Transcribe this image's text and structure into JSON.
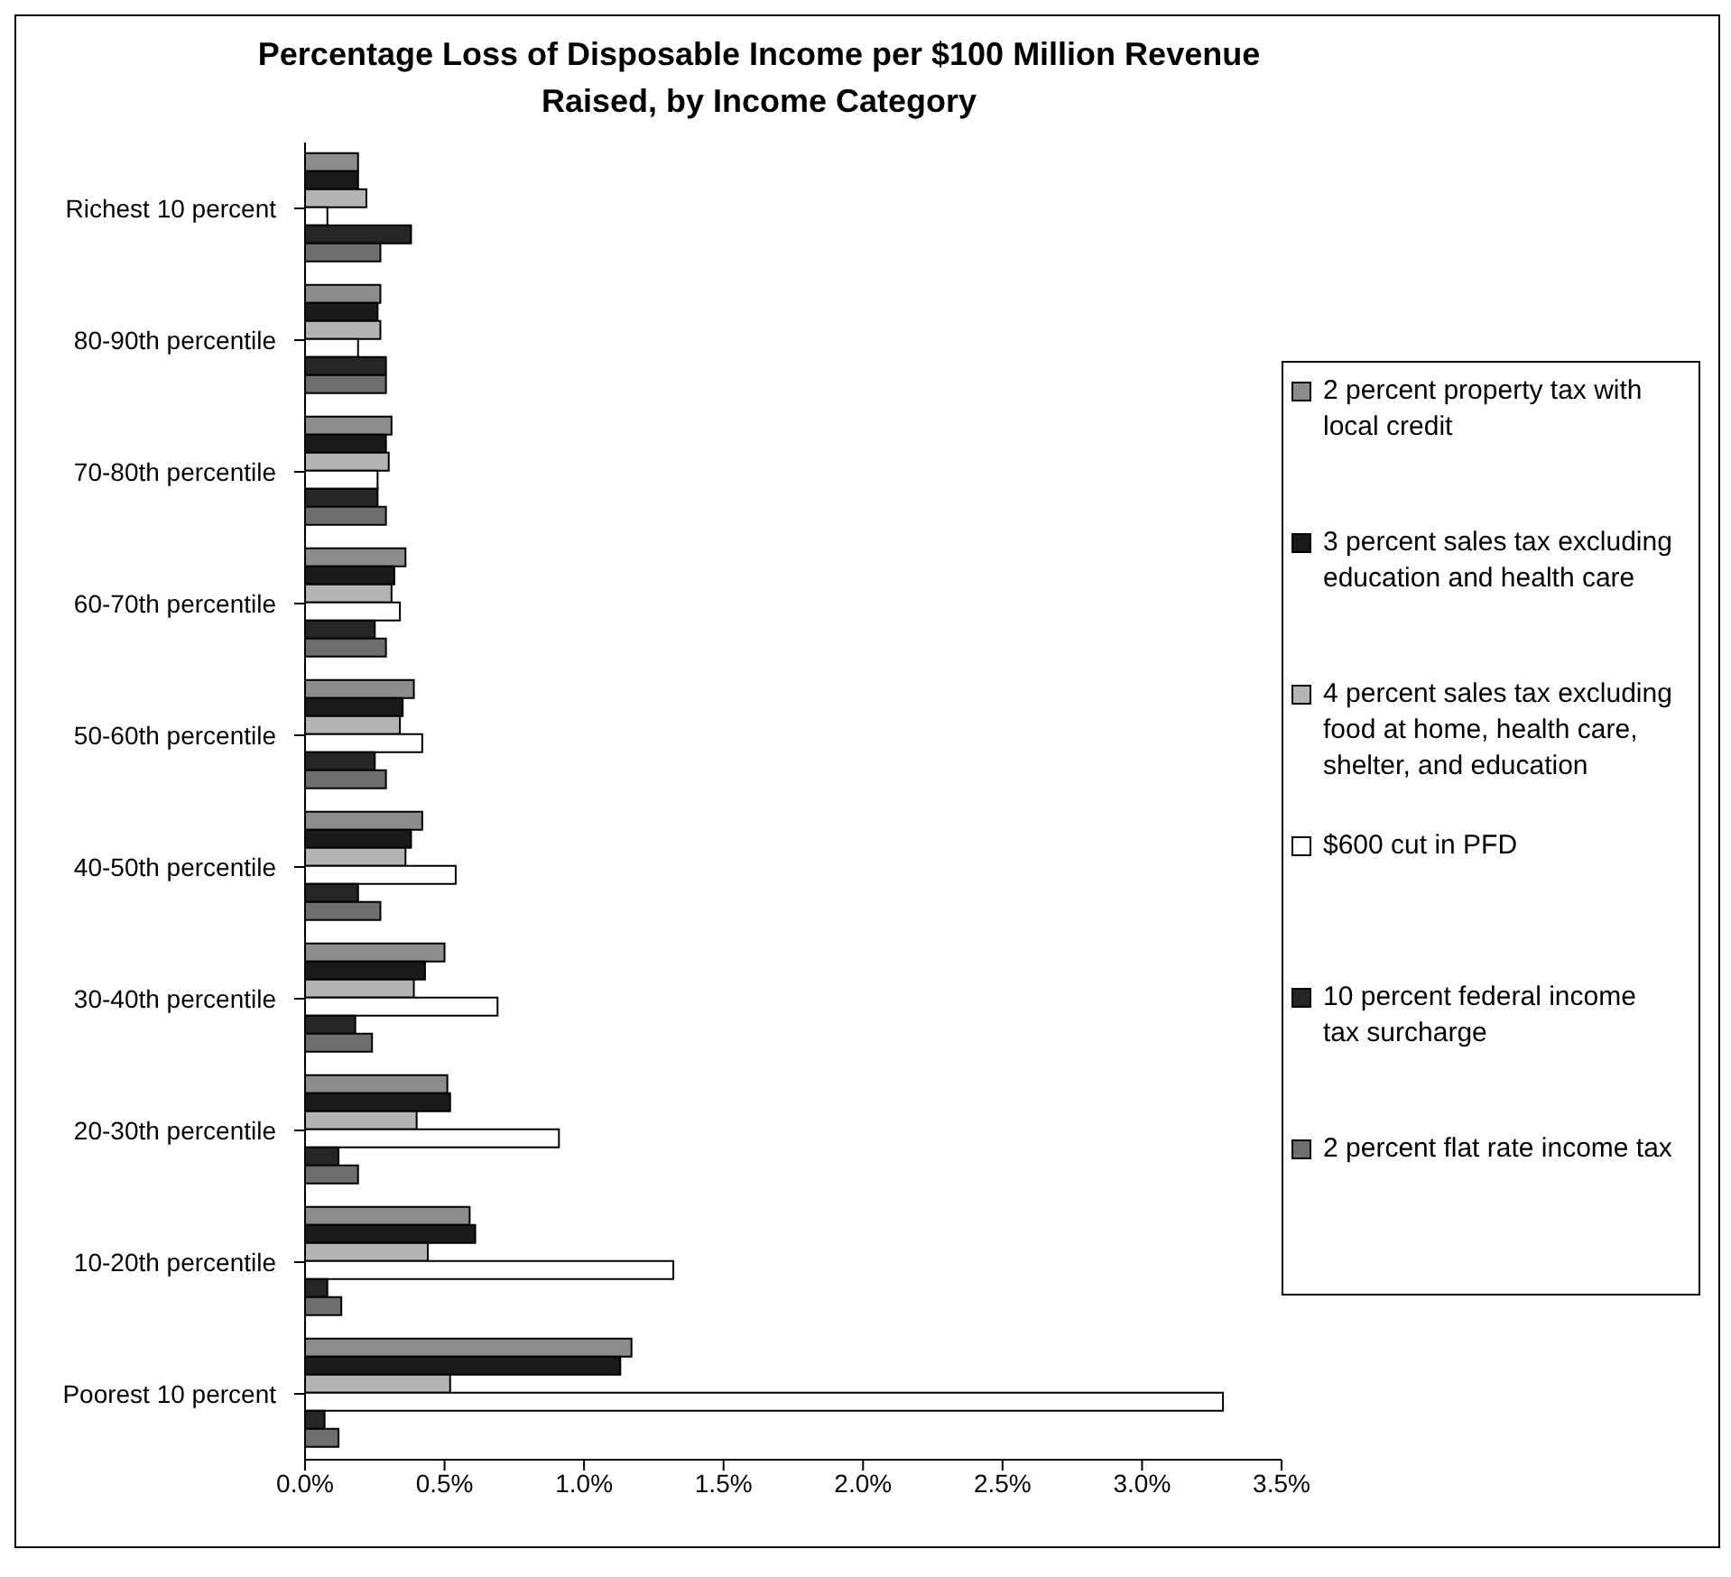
{
  "chart_data": {
    "type": "bar",
    "orientation": "horizontal",
    "title": "Percentage Loss of Disposable Income per $100 Million Revenue Raised, by Income Category",
    "categories": [
      "Richest 10 percent",
      "80-90th percentile",
      "70-80th percentile",
      "60-70th percentile",
      "50-60th percentile",
      "40-50th percentile",
      "30-40th percentile",
      "20-30th percentile",
      "10-20th percentile",
      "Poorest 10 percent"
    ],
    "series": [
      {
        "name": "2 percent property tax with local credit",
        "color": "#8c8c8c",
        "values": [
          0.19,
          0.27,
          0.31,
          0.36,
          0.39,
          0.42,
          0.5,
          0.51,
          0.59,
          1.17
        ]
      },
      {
        "name": "3 percent sales tax excluding education and health care",
        "color": "#1a1a1a",
        "values": [
          0.19,
          0.26,
          0.29,
          0.32,
          0.35,
          0.38,
          0.43,
          0.52,
          0.61,
          1.13
        ]
      },
      {
        "name": "4 percent sales tax excluding food at home, health care, shelter, and education",
        "color": "#b4b4b4",
        "values": [
          0.22,
          0.27,
          0.3,
          0.31,
          0.34,
          0.36,
          0.39,
          0.4,
          0.44,
          0.52
        ]
      },
      {
        "name": "$600 cut in PFD",
        "color": "#ffffff",
        "values": [
          0.08,
          0.19,
          0.26,
          0.34,
          0.42,
          0.54,
          0.69,
          0.91,
          1.32,
          3.29
        ]
      },
      {
        "name": "10 percent federal income tax surcharge",
        "color": "#262626",
        "values": [
          0.38,
          0.29,
          0.26,
          0.25,
          0.25,
          0.19,
          0.18,
          0.12,
          0.08,
          0.07
        ]
      },
      {
        "name": "2 percent flat rate income tax",
        "color": "#6e6e6e",
        "values": [
          0.27,
          0.29,
          0.29,
          0.29,
          0.29,
          0.27,
          0.24,
          0.19,
          0.13,
          0.12
        ]
      }
    ],
    "xlim": [
      0,
      3.5
    ],
    "xticks": [
      {
        "value": 0,
        "label": "0.0%"
      },
      {
        "value": 0.5,
        "label": "0.5%"
      },
      {
        "value": 1,
        "label": "1.0%"
      },
      {
        "value": 1.5,
        "label": "1.5%"
      },
      {
        "value": 2,
        "label": "2.0%"
      },
      {
        "value": 2.5,
        "label": "2.5%"
      },
      {
        "value": 3,
        "label": "3.0%"
      },
      {
        "value": 3.5,
        "label": "3.5%"
      }
    ],
    "grid": false,
    "legend": "right"
  }
}
